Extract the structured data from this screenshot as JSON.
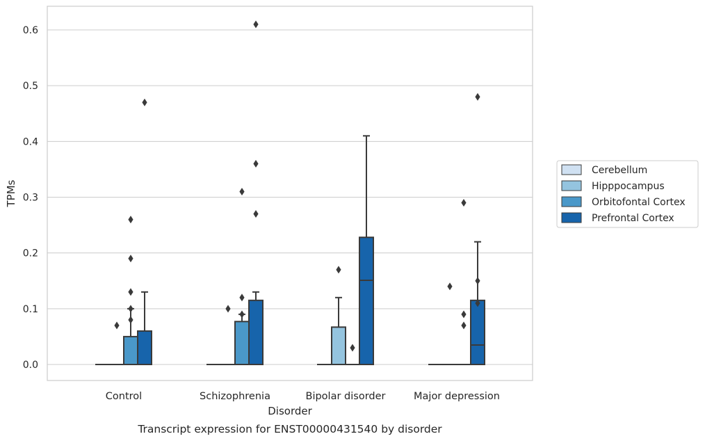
{
  "chart_data": {
    "type": "boxplot",
    "xlabel": "Disorder",
    "ylabel": "TPMs",
    "caption": "Transcript expression for ENST00000431540 by disorder",
    "ylim": [
      -0.03,
      0.64
    ],
    "yticks": [
      0.0,
      0.1,
      0.2,
      0.3,
      0.4,
      0.5,
      0.6
    ],
    "ytick_labels": [
      "0.0",
      "0.1",
      "0.2",
      "0.3",
      "0.4",
      "0.5",
      "0.6"
    ],
    "grid": "horizontal",
    "legend_position": "right",
    "categories": [
      "Control",
      "Schizophrenia",
      "Bipolar disorder",
      "Major depression"
    ],
    "series": [
      {
        "name": "Cerebellum",
        "color": "#d0e1f2",
        "boxes": [
          {
            "q1": 0,
            "median": 0,
            "q3": 0,
            "whisker_low": 0,
            "whisker_high": 0,
            "outliers": []
          },
          {
            "q1": 0,
            "median": 0,
            "q3": 0,
            "whisker_low": 0,
            "whisker_high": 0,
            "outliers": []
          },
          {
            "q1": 0,
            "median": 0,
            "q3": 0,
            "whisker_low": 0,
            "whisker_high": 0,
            "outliers": []
          },
          {
            "q1": 0,
            "median": 0,
            "q3": 0,
            "whisker_low": 0,
            "whisker_high": 0,
            "outliers": []
          }
        ]
      },
      {
        "name": "Hipppocampus",
        "color": "#94c4df",
        "boxes": [
          {
            "q1": 0,
            "median": 0,
            "q3": 0,
            "whisker_low": 0,
            "whisker_high": 0,
            "outliers": [
              0.07
            ]
          },
          {
            "q1": 0,
            "median": 0,
            "q3": 0,
            "whisker_low": 0,
            "whisker_high": 0,
            "outliers": [
              0.1
            ]
          },
          {
            "q1": 0,
            "median": 0,
            "q3": 0.067,
            "whisker_low": 0,
            "whisker_high": 0.12,
            "outliers": [
              0.17
            ]
          },
          {
            "q1": 0,
            "median": 0,
            "q3": 0,
            "whisker_low": 0,
            "whisker_high": 0,
            "outliers": [
              0.14
            ]
          }
        ]
      },
      {
        "name": "Orbitofontal Cortex",
        "color": "#4a98c9",
        "boxes": [
          {
            "q1": 0,
            "median": 0,
            "q3": 0.05,
            "whisker_low": 0,
            "whisker_high": 0.1,
            "outliers": [
              0.08,
              0.1,
              0.13,
              0.19,
              0.26
            ]
          },
          {
            "q1": 0,
            "median": 0,
            "q3": 0.077,
            "whisker_low": 0,
            "whisker_high": 0.09,
            "outliers": [
              0.09,
              0.12,
              0.31
            ]
          },
          {
            "q1": 0,
            "median": 0,
            "q3": 0,
            "whisker_low": 0,
            "whisker_high": 0,
            "outliers": [
              0.03
            ]
          },
          {
            "q1": 0,
            "median": 0,
            "q3": 0,
            "whisker_low": 0,
            "whisker_high": 0,
            "outliers": [
              0.07,
              0.09,
              0.29
            ]
          }
        ]
      },
      {
        "name": "Prefrontal Cortex",
        "color": "#1764ab",
        "boxes": [
          {
            "q1": 0,
            "median": 0,
            "q3": 0.06,
            "whisker_low": 0,
            "whisker_high": 0.13,
            "outliers": [
              0.47
            ]
          },
          {
            "q1": 0,
            "median": 0,
            "q3": 0.115,
            "whisker_low": 0,
            "whisker_high": 0.13,
            "outliers": [
              0.27,
              0.36,
              0.61
            ]
          },
          {
            "q1": 0,
            "median": 0.151,
            "q3": 0.228,
            "whisker_low": 0,
            "whisker_high": 0.41,
            "outliers": []
          },
          {
            "q1": 0,
            "median": 0.035,
            "q3": 0.115,
            "whisker_low": 0,
            "whisker_high": 0.22,
            "outliers": [
              0.11,
              0.15,
              0.48
            ]
          }
        ]
      }
    ]
  }
}
